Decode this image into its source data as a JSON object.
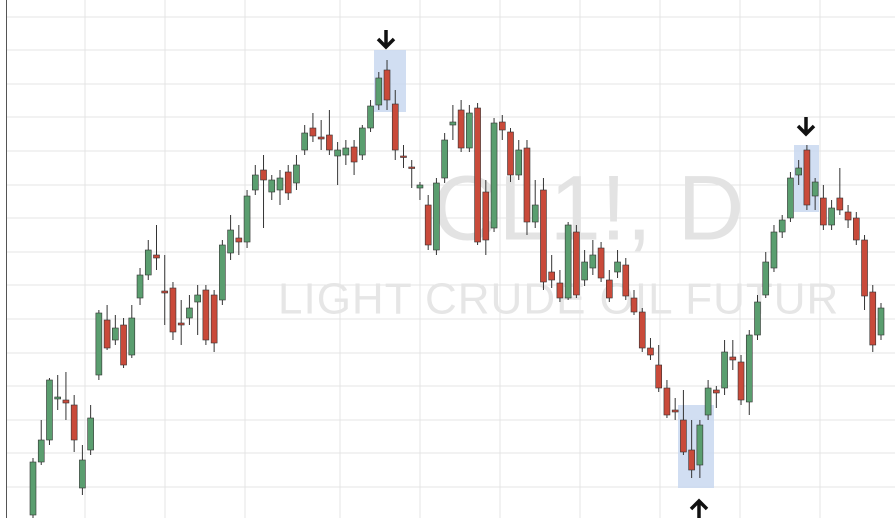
{
  "chart_data": {
    "type": "candlestick",
    "title": "CL1!, D",
    "subtitle": "LIGHT CRUDE OIL FUTUR",
    "up_color": "#5a9e6f",
    "down_color": "#c94a3a",
    "grid": true,
    "ylim": [
      0,
      518
    ],
    "yticks": [
      31,
      65,
      98,
      132,
      165,
      199,
      233,
      266,
      300,
      333,
      367,
      401,
      434,
      468,
      501
    ],
    "open": [
      3,
      56,
      78,
      119,
      118,
      113,
      30,
      68,
      143,
      198,
      178,
      193,
      163,
      220,
      243,
      263,
      227,
      230,
      195,
      200,
      216,
      228,
      223,
      218,
      265,
      280,
      276,
      328,
      348,
      326,
      328,
      346,
      335,
      368,
      390,
      381,
      383,
      362,
      363,
      371,
      363,
      390,
      413,
      448,
      414,
      362,
      351,
      330,
      313,
      268,
      340,
      393,
      408,
      370,
      410,
      326,
      290,
      396,
      386,
      343,
      370,
      296,
      328,
      246,
      235,
      220,
      286,
      238,
      250,
      270,
      238,
      246,
      253,
      220,
      206,
      170,
      153,
      130,
      108,
      98,
      68,
      53,
      103,
      128,
      130,
      161,
      156,
      116,
      183,
      223,
      250,
      286,
      300,
      343,
      368,
      322,
      320,
      293,
      320,
      306,
      300,
      278,
      226,
      183
    ],
    "close": [
      56,
      78,
      138,
      121,
      115,
      78,
      58,
      100,
      205,
      170,
      190,
      153,
      200,
      243,
      268,
      260,
      225,
      186,
      193,
      210,
      223,
      178,
      175,
      273,
      288,
      276,
      322,
      343,
      338,
      338,
      340,
      325,
      353,
      385,
      382,
      379,
      368,
      368,
      370,
      356,
      390,
      412,
      440,
      418,
      368,
      361,
      350,
      333,
      273,
      335,
      378,
      396,
      370,
      405,
      276,
      278,
      395,
      388,
      343,
      368,
      296,
      313,
      236,
      238,
      220,
      293,
      223,
      256,
      263,
      240,
      220,
      256,
      222,
      206,
      170,
      163,
      130,
      103,
      106,
      66,
      48,
      93,
      130,
      125,
      166,
      158,
      118,
      183,
      216,
      256,
      286,
      298,
      340,
      350,
      313,
      336,
      293,
      310,
      308,
      298,
      278,
      222,
      173,
      210
    ],
    "high": [
      60,
      98,
      140,
      143,
      146,
      123,
      73,
      113,
      208,
      213,
      203,
      200,
      213,
      250,
      278,
      293,
      263,
      236,
      218,
      223,
      233,
      233,
      228,
      278,
      303,
      293,
      328,
      353,
      363,
      343,
      348,
      353,
      363,
      393,
      405,
      398,
      408,
      376,
      378,
      378,
      393,
      418,
      446,
      458,
      428,
      373,
      358,
      336,
      323,
      340,
      385,
      413,
      418,
      413,
      415,
      338,
      400,
      403,
      390,
      378,
      378,
      338,
      340,
      263,
      248,
      296,
      293,
      268,
      278,
      276,
      248,
      268,
      260,
      228,
      210,
      180,
      173,
      138,
      120,
      128,
      98,
      98,
      138,
      132,
      178,
      178,
      163,
      188,
      223,
      266,
      293,
      303,
      346,
      358,
      373,
      340,
      333,
      318,
      350,
      313,
      306,
      283,
      233,
      215
    ],
    "low": [
      0,
      53,
      73,
      108,
      98,
      66,
      23,
      63,
      138,
      168,
      173,
      150,
      160,
      213,
      238,
      248,
      193,
      178,
      173,
      193,
      183,
      173,
      166,
      213,
      258,
      263,
      270,
      323,
      290,
      318,
      313,
      318,
      328,
      363,
      376,
      368,
      363,
      333,
      353,
      343,
      358,
      386,
      408,
      408,
      358,
      350,
      330,
      318,
      268,
      263,
      335,
      378,
      366,
      366,
      273,
      263,
      286,
      378,
      336,
      338,
      283,
      290,
      228,
      230,
      216,
      218,
      220,
      232,
      243,
      236,
      216,
      240,
      218,
      203,
      166,
      158,
      126,
      100,
      98,
      63,
      40,
      40,
      98,
      110,
      123,
      148,
      113,
      103,
      178,
      220,
      246,
      280,
      296,
      333,
      308,
      308,
      288,
      288,
      303,
      290,
      273,
      208,
      166,
      178
    ]
  }
}
